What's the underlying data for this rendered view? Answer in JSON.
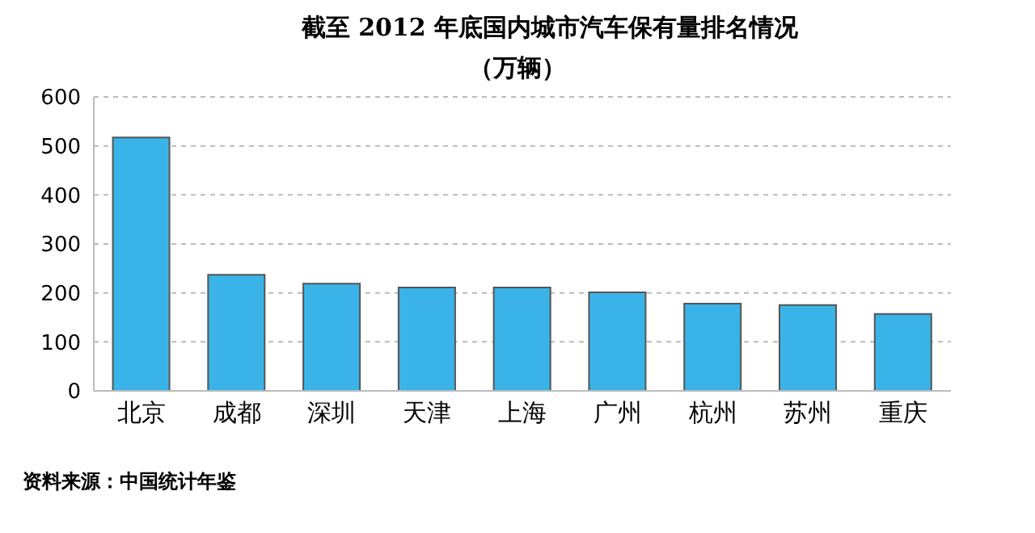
{
  "chart_data": {
    "type": "bar",
    "title": "截至 2012 年底国内城市汽车保有量排名情况",
    "subtitle": "（万辆）",
    "categories": [
      "北京",
      "成都",
      "深圳",
      "天津",
      "上海",
      "广州",
      "杭州",
      "苏州",
      "重庆"
    ],
    "values": [
      517,
      237,
      219,
      211,
      211,
      201,
      178,
      175,
      157
    ],
    "color": "#3ab4e8",
    "ylim": [
      0,
      600
    ],
    "yticks": [
      0,
      100,
      200,
      300,
      400,
      500,
      600
    ],
    "grid": "y",
    "annotations": [
      "资料来源：中国统计年鉴"
    ]
  }
}
